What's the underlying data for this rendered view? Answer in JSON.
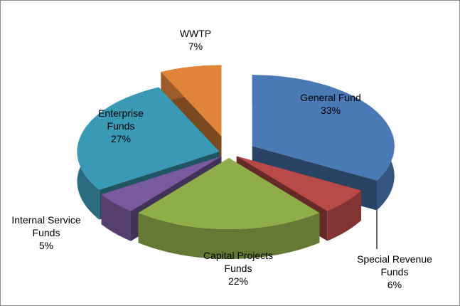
{
  "chart_data": {
    "type": "pie",
    "categories": [
      "General Fund",
      "Special Revenue Funds",
      "Capital Projects Funds",
      "Internal Service Funds",
      "Enterprise Funds",
      "WWTP"
    ],
    "values": [
      33,
      6,
      22,
      5,
      27,
      7
    ],
    "value_labels": [
      "33%",
      "6%",
      "22%",
      "5%",
      "27%",
      "7%"
    ],
    "colors": [
      "#4a7ab5",
      "#b84a47",
      "#8fae4a",
      "#7a5a9e",
      "#3a9ab5",
      "#e0843a"
    ]
  }
}
